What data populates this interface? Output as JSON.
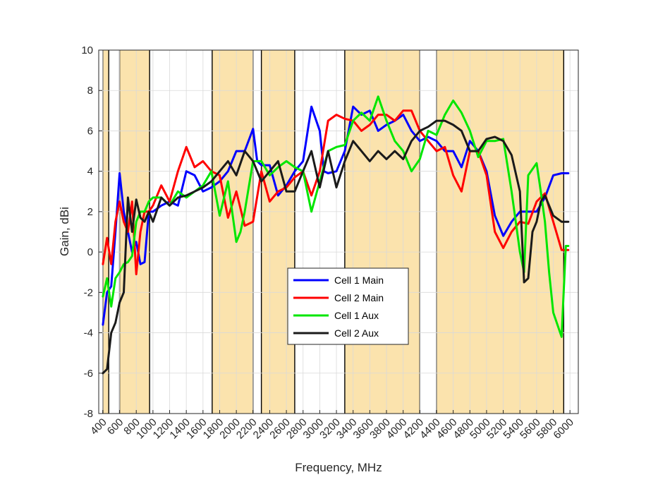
{
  "chart_data": {
    "type": "line",
    "title": "",
    "xlabel": "Frequency, MHz",
    "ylabel": "Gain, dBi",
    "xlim": [
      350,
      6100
    ],
    "ylim": [
      -8,
      10
    ],
    "xticks": [
      400,
      600,
      800,
      1000,
      1200,
      1400,
      1600,
      1800,
      2000,
      2200,
      2400,
      2600,
      2800,
      3000,
      3200,
      3400,
      3600,
      3800,
      4000,
      4200,
      4400,
      4600,
      4800,
      5000,
      5200,
      5400,
      5600,
      5800,
      6000
    ],
    "yticks": [
      -8,
      -6,
      -4,
      -2,
      0,
      2,
      4,
      6,
      8,
      10
    ],
    "grid": true,
    "legend_position": "center-bottom",
    "bands": [
      [
        400,
        470
      ],
      [
        600,
        960
      ],
      [
        1710,
        2200
      ],
      [
        2300,
        2700
      ],
      [
        3300,
        4200
      ],
      [
        4400,
        5925
      ]
    ],
    "band_color": "#fbe3ad",
    "series": [
      {
        "name": "Cell 1 Main",
        "color": "#0000ff",
        "x": [
          400,
          450,
          500,
          550,
          600,
          650,
          700,
          750,
          800,
          850,
          900,
          950,
          1000,
          1100,
          1200,
          1300,
          1400,
          1500,
          1600,
          1700,
          1800,
          1900,
          2000,
          2100,
          2200,
          2250,
          2300,
          2400,
          2500,
          2600,
          2700,
          2800,
          2900,
          3000,
          3050,
          3100,
          3200,
          3300,
          3400,
          3500,
          3600,
          3700,
          3800,
          3900,
          4000,
          4100,
          4200,
          4300,
          4400,
          4500,
          4600,
          4700,
          4800,
          4900,
          5000,
          5100,
          5200,
          5300,
          5400,
          5500,
          5600,
          5700,
          5800,
          5900,
          5980
        ],
        "values": [
          -3.6,
          -2.0,
          -1.7,
          1.0,
          3.9,
          2.0,
          1.0,
          0.0,
          0.5,
          -0.6,
          -0.5,
          2.0,
          2.0,
          2.3,
          2.5,
          2.3,
          4.0,
          3.8,
          3.0,
          3.2,
          3.5,
          4.0,
          5.0,
          5.0,
          6.1,
          4.5,
          4.3,
          4.3,
          2.8,
          3.3,
          4.0,
          4.5,
          7.2,
          6.0,
          4.0,
          3.9,
          4.0,
          5.0,
          7.2,
          6.8,
          7.0,
          6.0,
          6.3,
          6.5,
          6.8,
          6.0,
          5.5,
          5.7,
          5.5,
          5.0,
          5.0,
          4.2,
          5.5,
          5.0,
          4.0,
          1.8,
          0.8,
          1.5,
          2.0,
          2.0,
          2.0,
          2.7,
          3.8,
          3.9,
          3.9
        ]
      },
      {
        "name": "Cell 2 Main",
        "color": "#ff0000",
        "x": [
          400,
          450,
          500,
          550,
          600,
          650,
          700,
          750,
          800,
          850,
          900,
          950,
          1000,
          1100,
          1200,
          1300,
          1400,
          1500,
          1600,
          1700,
          1800,
          1900,
          2000,
          2100,
          2200,
          2300,
          2400,
          2500,
          2600,
          2700,
          2800,
          2900,
          3000,
          3100,
          3200,
          3300,
          3400,
          3500,
          3600,
          3700,
          3800,
          3900,
          4000,
          4100,
          4200,
          4300,
          4400,
          4500,
          4600,
          4700,
          4800,
          4900,
          5000,
          5100,
          5200,
          5300,
          5400,
          5500,
          5600,
          5700,
          5800,
          5900,
          5980
        ],
        "values": [
          -0.6,
          0.7,
          -0.6,
          1.5,
          2.5,
          1.5,
          1.0,
          2.5,
          -1.1,
          1.0,
          2.0,
          2.0,
          2.3,
          3.3,
          2.5,
          4.0,
          5.2,
          4.2,
          4.5,
          4.0,
          3.8,
          1.7,
          3.0,
          1.3,
          1.5,
          4.0,
          2.5,
          3.0,
          3.2,
          3.7,
          4.0,
          2.8,
          4.0,
          6.5,
          6.8,
          6.6,
          6.5,
          6.0,
          6.3,
          6.8,
          6.8,
          6.5,
          7.0,
          7.0,
          6.0,
          5.5,
          5.0,
          5.2,
          3.8,
          3.0,
          5.0,
          5.0,
          3.8,
          1.0,
          0.2,
          1.0,
          1.5,
          1.4,
          2.5,
          2.9,
          1.5,
          0.1,
          0.1
        ]
      },
      {
        "name": "Cell 1 Aux",
        "color": "#00e600",
        "x": [
          400,
          450,
          500,
          550,
          600,
          650,
          700,
          750,
          800,
          850,
          900,
          950,
          1000,
          1100,
          1200,
          1300,
          1400,
          1500,
          1600,
          1700,
          1800,
          1900,
          2000,
          2050,
          2100,
          2200,
          2300,
          2400,
          2500,
          2600,
          2700,
          2800,
          2900,
          3000,
          3100,
          3200,
          3300,
          3400,
          3500,
          3600,
          3700,
          3800,
          3900,
          4000,
          4100,
          4200,
          4300,
          4400,
          4500,
          4600,
          4700,
          4800,
          4900,
          5000,
          5100,
          5200,
          5300,
          5400,
          5450,
          5500,
          5600,
          5650,
          5700,
          5750,
          5800,
          5900,
          5950,
          5980
        ],
        "values": [
          -2.2,
          -1.3,
          -2.7,
          -1.3,
          -1.0,
          -0.6,
          -0.5,
          -0.2,
          1.5,
          2.0,
          2.0,
          2.5,
          2.7,
          2.7,
          2.3,
          3.0,
          2.7,
          3.0,
          3.3,
          4.0,
          1.8,
          3.5,
          0.5,
          1.0,
          2.0,
          4.5,
          4.5,
          3.8,
          4.2,
          4.5,
          4.2,
          4.0,
          2.0,
          3.5,
          5.0,
          5.2,
          5.3,
          6.5,
          6.9,
          6.5,
          7.7,
          6.5,
          5.5,
          5.0,
          4.0,
          4.6,
          6.0,
          5.8,
          6.8,
          7.5,
          6.9,
          6.0,
          4.7,
          5.5,
          5.5,
          5.6,
          3.0,
          0.0,
          -1.0,
          3.8,
          4.4,
          3.0,
          1.5,
          -1.0,
          -3.0,
          -4.2,
          0.3,
          0.3
        ]
      },
      {
        "name": "Cell 2 Aux",
        "color": "#1a1a1a",
        "x": [
          400,
          450,
          500,
          550,
          600,
          650,
          700,
          750,
          800,
          850,
          900,
          950,
          1000,
          1100,
          1200,
          1300,
          1400,
          1500,
          1600,
          1700,
          1800,
          1900,
          2000,
          2100,
          2200,
          2300,
          2400,
          2500,
          2600,
          2700,
          2800,
          2900,
          3000,
          3100,
          3200,
          3300,
          3400,
          3500,
          3600,
          3700,
          3800,
          3900,
          4000,
          4100,
          4200,
          4300,
          4400,
          4500,
          4600,
          4700,
          4800,
          4900,
          5000,
          5100,
          5200,
          5300,
          5400,
          5450,
          5500,
          5550,
          5600,
          5650,
          5700,
          5800,
          5900,
          5980
        ],
        "values": [
          -6.0,
          -5.8,
          -4.0,
          -3.5,
          -2.5,
          -2.0,
          2.7,
          1.0,
          2.6,
          1.7,
          1.5,
          2.0,
          1.5,
          2.7,
          2.3,
          2.7,
          2.8,
          3.0,
          3.2,
          3.5,
          4.0,
          4.5,
          3.8,
          5.0,
          4.5,
          3.5,
          4.0,
          4.5,
          3.0,
          3.0,
          4.0,
          5.0,
          3.2,
          5.0,
          3.2,
          4.5,
          5.5,
          5.0,
          4.5,
          5.0,
          4.6,
          5.0,
          4.6,
          5.5,
          6.0,
          6.2,
          6.5,
          6.5,
          6.3,
          6.0,
          5.0,
          5.0,
          5.6,
          5.7,
          5.5,
          4.8,
          3.0,
          -1.5,
          -1.3,
          1.0,
          1.5,
          2.5,
          2.8,
          1.8,
          1.5,
          1.5
        ]
      }
    ]
  }
}
